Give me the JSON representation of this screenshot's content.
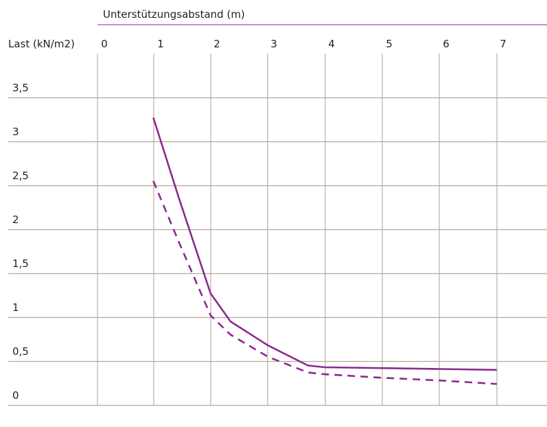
{
  "chart_data": {
    "type": "line",
    "title": "Unterstützungsabstand (m)",
    "ylabel": "Last (kN/m2)",
    "x_ticks": [
      "0",
      "1",
      "2",
      "3",
      "4",
      "5",
      "6",
      "7"
    ],
    "y_ticks": [
      "0",
      "0,5",
      "1",
      "1,5",
      "2",
      "2,5",
      "3",
      "3,5"
    ],
    "xlim": [
      0,
      7
    ],
    "ylim": [
      0,
      3.5
    ],
    "grid": true,
    "colors": {
      "series": "#8b2a8e",
      "title_rule": "#b04a9e",
      "grid": "#c2b2a7",
      "text": "#222222"
    },
    "series": [
      {
        "style": "solid",
        "points": [
          [
            1.0,
            3.27
          ],
          [
            1.45,
            2.35
          ],
          [
            2.0,
            1.27
          ],
          [
            2.35,
            0.95
          ],
          [
            3.0,
            0.68
          ],
          [
            3.7,
            0.45
          ],
          [
            4.0,
            0.43
          ],
          [
            5.0,
            0.42
          ],
          [
            6.0,
            0.41
          ],
          [
            7.0,
            0.4
          ]
        ]
      },
      {
        "style": "dashed",
        "points": [
          [
            1.0,
            2.55
          ],
          [
            1.45,
            1.85
          ],
          [
            2.0,
            1.02
          ],
          [
            2.35,
            0.8
          ],
          [
            3.0,
            0.55
          ],
          [
            3.7,
            0.37
          ],
          [
            4.0,
            0.35
          ],
          [
            5.0,
            0.31
          ],
          [
            6.0,
            0.28
          ],
          [
            7.0,
            0.24
          ]
        ]
      }
    ]
  }
}
